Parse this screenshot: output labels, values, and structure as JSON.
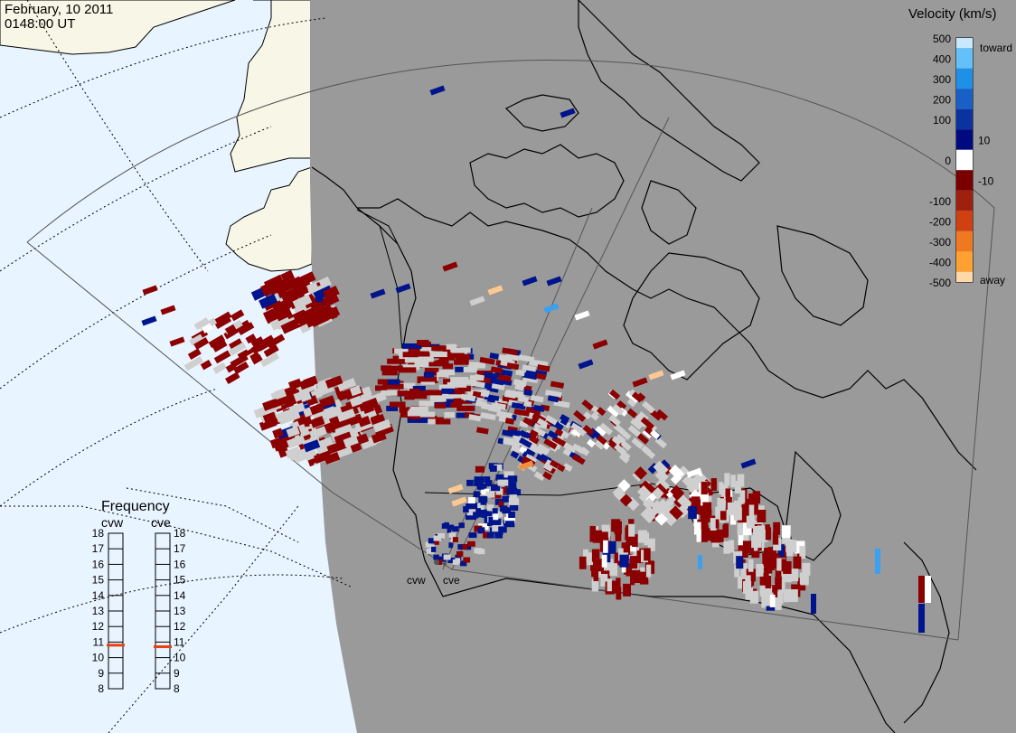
{
  "header": {
    "date": "February, 10 2011",
    "time": "0148:00 UT"
  },
  "colorbar": {
    "title": "Velocity (km/s)",
    "ticks": [
      "500",
      "400",
      "300",
      "200",
      "100",
      "10",
      "0",
      "-10",
      "-100",
      "-200",
      "-300",
      "-400",
      "-500"
    ],
    "toward_label": "toward",
    "away_label": "away",
    "colors": [
      "#c8e8ff",
      "#64c0f8",
      "#1e90e8",
      "#1860c8",
      "#0a32a0",
      "#000a80",
      "#ffffff",
      "#7a0000",
      "#a02010",
      "#d04010",
      "#f07820",
      "#ffa030",
      "#ffd8a8"
    ]
  },
  "map": {
    "radars": [
      "cvw",
      "cve"
    ],
    "colors": {
      "night": "#9a9a9a",
      "day_ocean": "#e8f4ff",
      "day_land": "#f8f6e6",
      "coast": "#000000",
      "grey_scatter": "#cfcfcf"
    }
  },
  "frequency": {
    "title": "Frequency",
    "stations": [
      {
        "name": "cvw",
        "value": 10.8
      },
      {
        "name": "cve",
        "value": 10.7
      }
    ],
    "scale": [
      "18",
      "17",
      "16",
      "15",
      "14",
      "13",
      "12",
      "11",
      "10",
      "9",
      "8"
    ],
    "marker_color": "#e84010"
  }
}
